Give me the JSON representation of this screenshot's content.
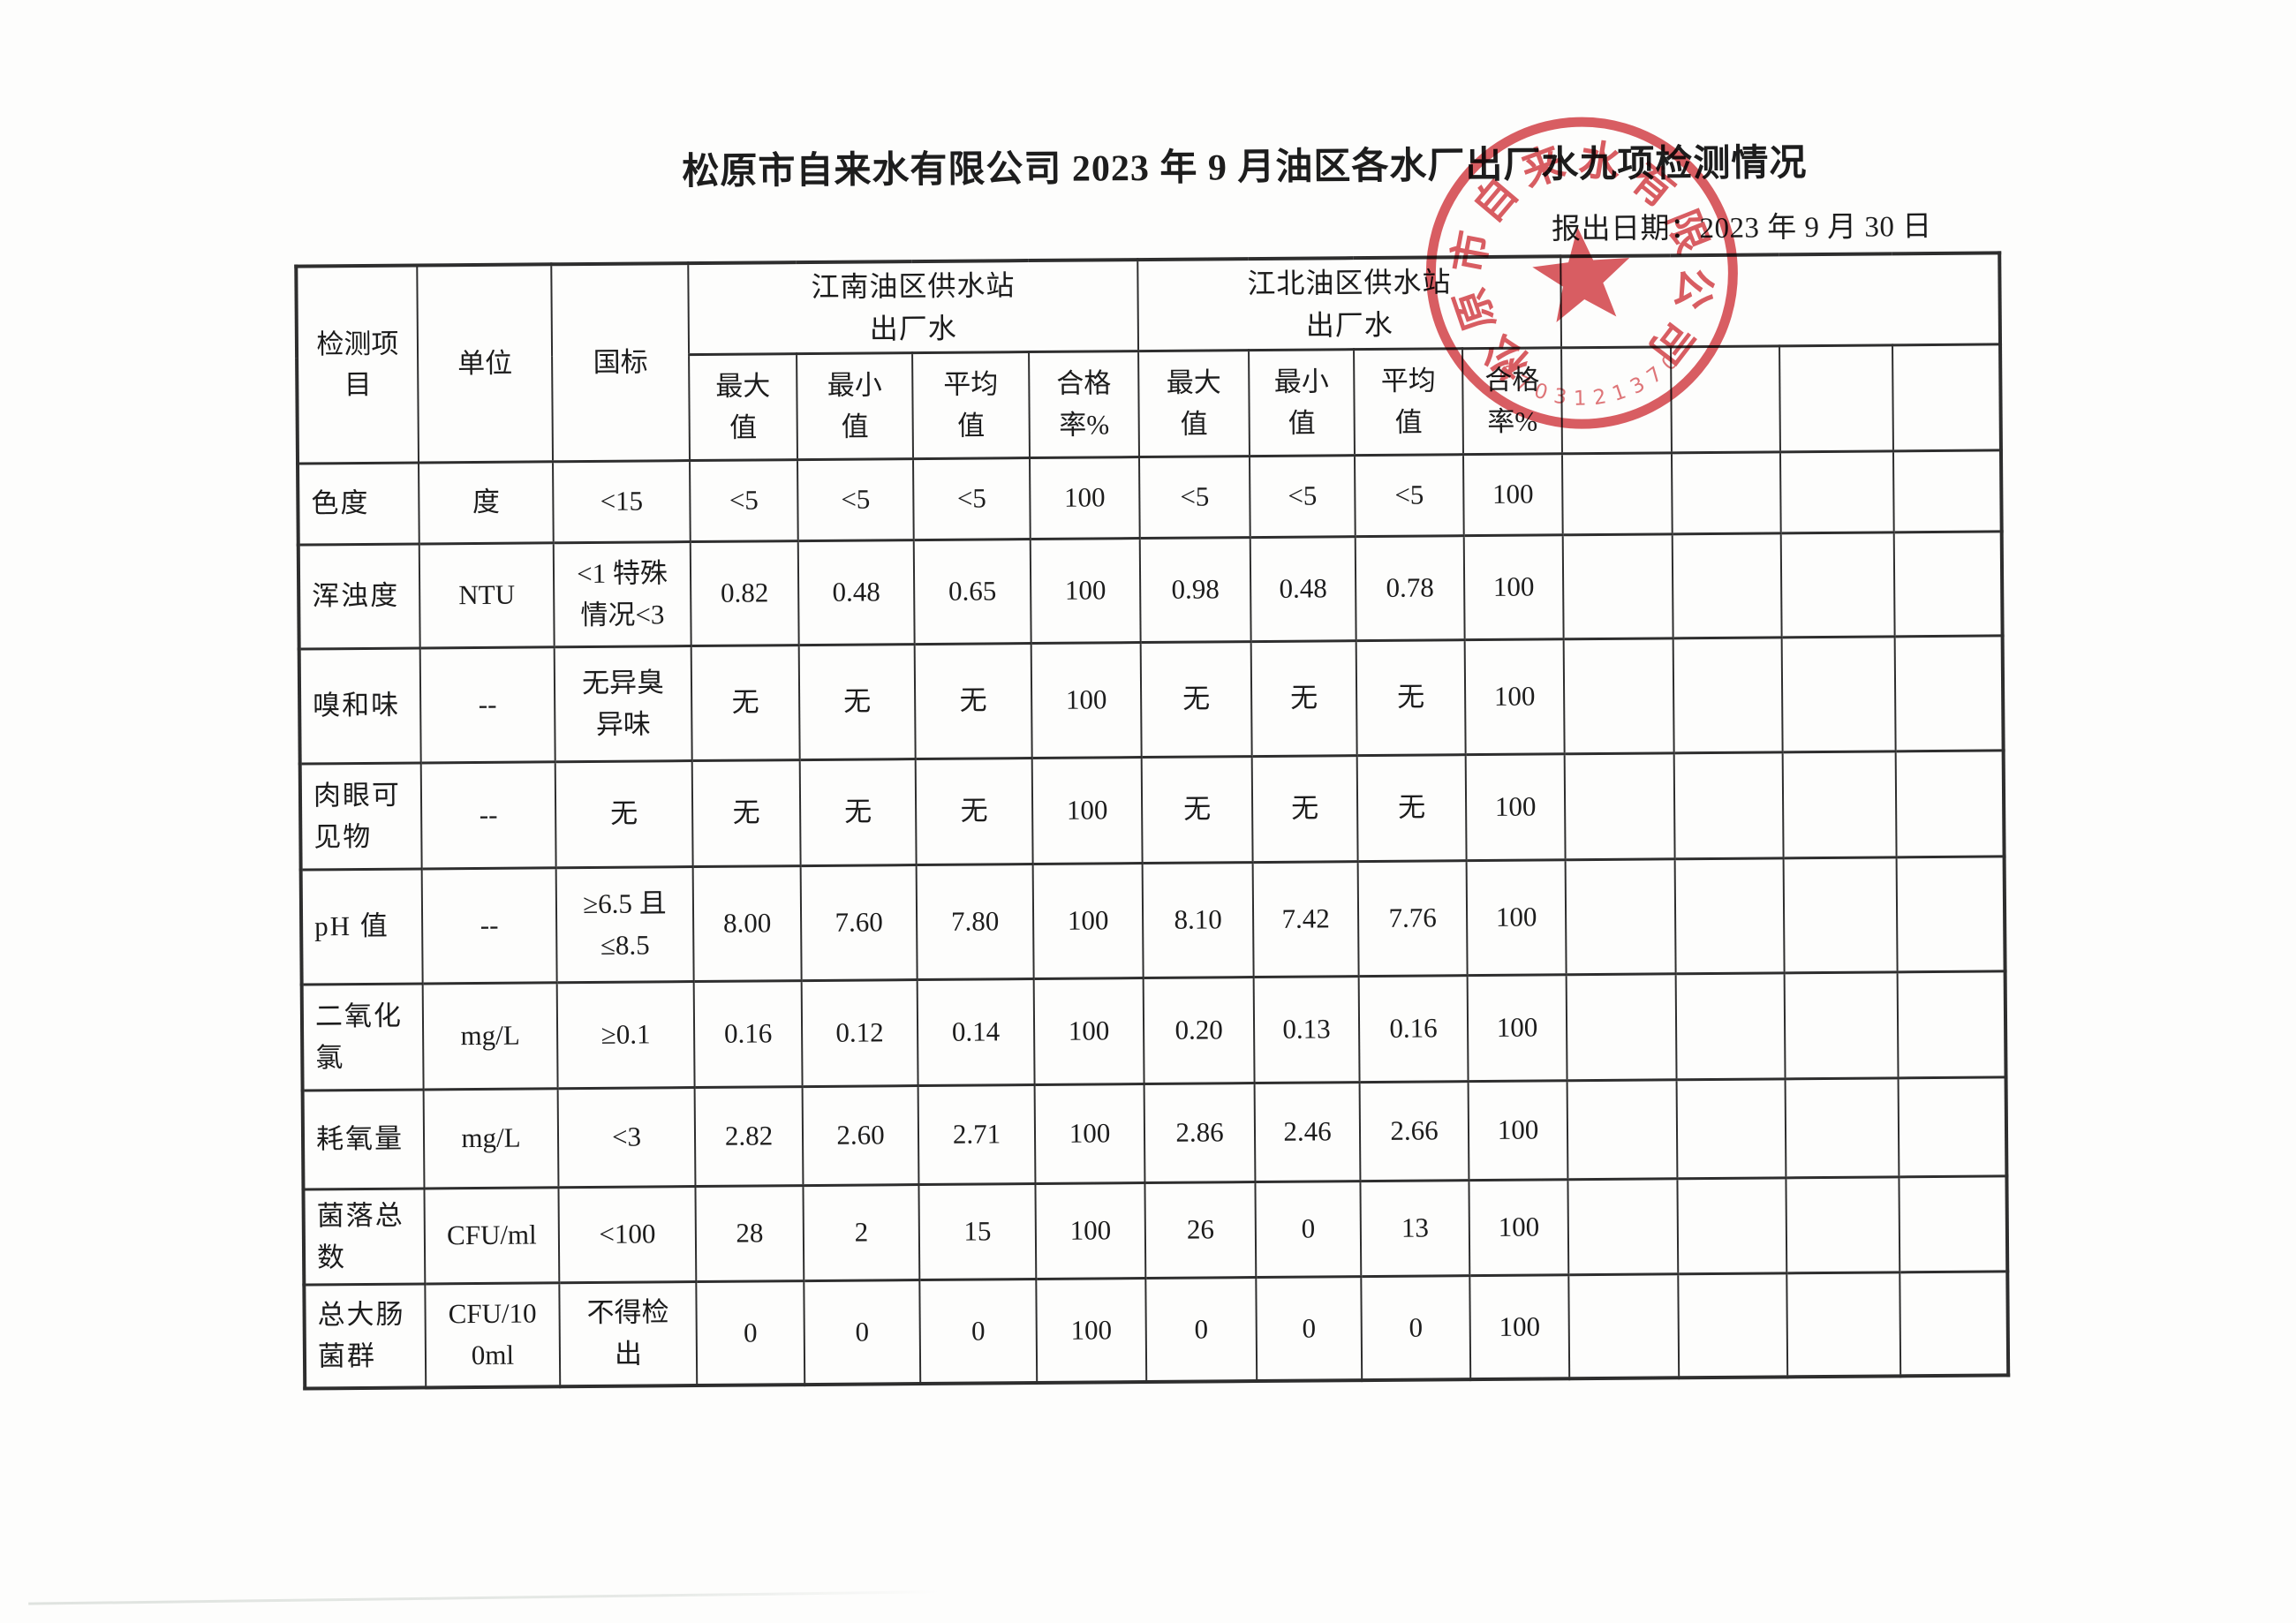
{
  "document": {
    "title": "松原市自来水有限公司 2023 年 9 月油区各水厂出厂水九项检测情况",
    "report_date": "报出日期：2023 年 9 月 30 日"
  },
  "stamp": {
    "company": "松原市自来水有限公司",
    "serial": "207031213702",
    "color": "#d0393f"
  },
  "table": {
    "header": {
      "item": "检测项\n目",
      "unit": "单位",
      "standard": "国标",
      "group1": "江南油区供水站\n出厂水",
      "group2": "江北油区供水站\n出厂水",
      "sub": [
        "最大\n值",
        "最小\n值",
        "平均\n值",
        "合格\n率%"
      ]
    },
    "rows": [
      {
        "item": "色度",
        "unit": "度",
        "standard": "<15",
        "jiangnan": [
          "<5",
          "<5",
          "<5",
          "100"
        ],
        "jiangbei": [
          "<5",
          "<5",
          "<5",
          "100"
        ]
      },
      {
        "item": "浑浊度",
        "unit": "NTU",
        "standard": "<1 特殊\n情况<3",
        "jiangnan": [
          "0.82",
          "0.48",
          "0.65",
          "100"
        ],
        "jiangbei": [
          "0.98",
          "0.48",
          "0.78",
          "100"
        ]
      },
      {
        "item": "嗅和味",
        "unit": "--",
        "standard": "无异臭\n异味",
        "jiangnan": [
          "无",
          "无",
          "无",
          "100"
        ],
        "jiangbei": [
          "无",
          "无",
          "无",
          "100"
        ]
      },
      {
        "item": "肉眼可\n见物",
        "unit": "--",
        "standard": "无",
        "jiangnan": [
          "无",
          "无",
          "无",
          "100"
        ],
        "jiangbei": [
          "无",
          "无",
          "无",
          "100"
        ]
      },
      {
        "item": "pH 值",
        "unit": "--",
        "standard": "≥6.5 且\n≤8.5",
        "jiangnan": [
          "8.00",
          "7.60",
          "7.80",
          "100"
        ],
        "jiangbei": [
          "8.10",
          "7.42",
          "7.76",
          "100"
        ]
      },
      {
        "item": "二氧化\n氯",
        "unit": "mg/L",
        "standard": "≥0.1",
        "jiangnan": [
          "0.16",
          "0.12",
          "0.14",
          "100"
        ],
        "jiangbei": [
          "0.20",
          "0.13",
          "0.16",
          "100"
        ]
      },
      {
        "item": "耗氧量",
        "unit": "mg/L",
        "standard": "<3",
        "jiangnan": [
          "2.82",
          "2.60",
          "2.71",
          "100"
        ],
        "jiangbei": [
          "2.86",
          "2.46",
          "2.66",
          "100"
        ]
      },
      {
        "item": "菌落总\n数",
        "unit": "CFU/ml",
        "standard": "<100",
        "jiangnan": [
          "28",
          "2",
          "15",
          "100"
        ],
        "jiangbei": [
          "26",
          "0",
          "13",
          "100"
        ]
      },
      {
        "item": "总大肠\n菌群",
        "unit": "CFU/10\n0ml",
        "standard": "不得检\n出",
        "jiangnan": [
          "0",
          "0",
          "0",
          "100"
        ],
        "jiangbei": [
          "0",
          "0",
          "0",
          "100"
        ]
      }
    ]
  }
}
